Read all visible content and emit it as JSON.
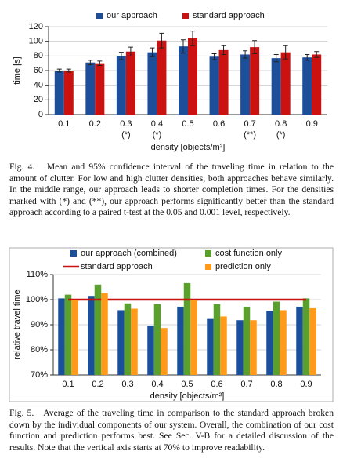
{
  "chart_data": [
    {
      "type": "bar",
      "xlabel": "density [objects/m²]",
      "ylabel": "time [s]",
      "categories": [
        "0.1",
        "0.2",
        "0.3",
        "0.4",
        "0.5",
        "0.6",
        "0.7",
        "0.8",
        "0.9"
      ],
      "category_notes": [
        null,
        null,
        "(*)",
        "(*)",
        null,
        null,
        "(**)",
        "(*)",
        null
      ],
      "series": [
        {
          "name": "our approach",
          "color": "#1c4e9a",
          "values": [
            60,
            71,
            80,
            85,
            93,
            79,
            82,
            77,
            78
          ],
          "errors": [
            2,
            3,
            5,
            6,
            9,
            4,
            5,
            5,
            4
          ]
        },
        {
          "name": "standard approach",
          "color": "#cc1111",
          "values": [
            60,
            70,
            86,
            101,
            104,
            88,
            92,
            85,
            82
          ],
          "errors": [
            2,
            3,
            6,
            10,
            10,
            6,
            9,
            9,
            4
          ]
        }
      ],
      "ylim": [
        0,
        120
      ],
      "yticks": [
        0,
        20,
        40,
        60,
        80,
        100,
        120
      ],
      "grid": true,
      "caption": "Fig. 4.   Mean and 95% confidence interval of the traveling time in relation to the amount of clutter. For low and high clutter densities, both approaches behave similarly. In the middle range, our approach leads to shorter completion times. For the densities marked with (*) and (**), our approach performs significantly better than the standard approach according to a paired t-test at the 0.05 and 0.001 level, respectively."
    },
    {
      "type": "bar",
      "xlabel": "density [objects/m²]",
      "ylabel": "relative travel time",
      "categories": [
        "0.1",
        "0.2",
        "0.3",
        "0.4",
        "0.5",
        "0.6",
        "0.7",
        "0.8",
        "0.9"
      ],
      "series": [
        {
          "name": "our approach (combined)",
          "color": "#1a4f9c",
          "values": [
            100.5,
            101.5,
            95.8,
            89.5,
            97.2,
            92.3,
            91.8,
            95.5,
            97.2
          ]
        },
        {
          "name": "cost function only",
          "color": "#5aa02c",
          "values": [
            102,
            106,
            98.5,
            98.2,
            106.6,
            98.2,
            97.2,
            99.2,
            100.5
          ]
        },
        {
          "name": "standard approach",
          "color": "#cc1111",
          "type": "line",
          "values": [
            100,
            100,
            100,
            100,
            100,
            100,
            100,
            100,
            100
          ]
        },
        {
          "name": "prediction only",
          "color": "#ff9a1a",
          "values": [
            100,
            102.6,
            96.4,
            88.7,
            100,
            93.3,
            91.8,
            95.8,
            96.6
          ]
        }
      ],
      "ylim": [
        70,
        110
      ],
      "yticks": [
        {
          "value": 70,
          "label": "70%"
        },
        {
          "value": 80,
          "label": "80%"
        },
        {
          "value": 90,
          "label": "90%"
        },
        {
          "value": 100,
          "label": "100%"
        },
        {
          "value": 110,
          "label": "110%"
        }
      ],
      "grid": true,
      "caption": "Fig. 5.   Average of the traveling time in comparison to the standard approach broken down by the individual components of our system. Overall, the combination of our cost function and prediction performs best. See Sec. V-B for a detailed discussion of the results. Note that the vertical axis starts at 70% to improve readability."
    }
  ]
}
